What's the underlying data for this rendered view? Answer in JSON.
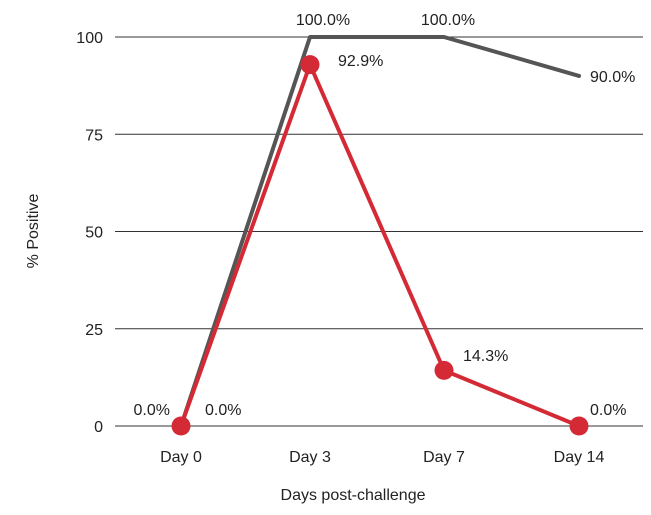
{
  "chart_data": {
    "type": "line",
    "title": "",
    "xlabel": "Days post-challenge",
    "ylabel": "% Positive",
    "categories": [
      "Day 0",
      "Day 3",
      "Day 7",
      "Day 14"
    ],
    "ylim": [
      0,
      100
    ],
    "yticks": [
      0,
      25,
      50,
      75,
      100
    ],
    "grid": true,
    "legend": "none",
    "series": [
      {
        "color": "#555555",
        "marker": "none",
        "values": [
          0,
          100,
          100,
          90
        ],
        "labels": [
          "0.0%",
          "100.0%",
          "100.0%",
          "90.0%"
        ]
      },
      {
        "color": "#d42a36",
        "marker": "circle",
        "values": [
          0,
          92.9,
          14.3,
          0
        ],
        "labels": [
          "0.0%",
          "92.9%",
          "14.3%",
          "0.0%"
        ]
      }
    ]
  }
}
